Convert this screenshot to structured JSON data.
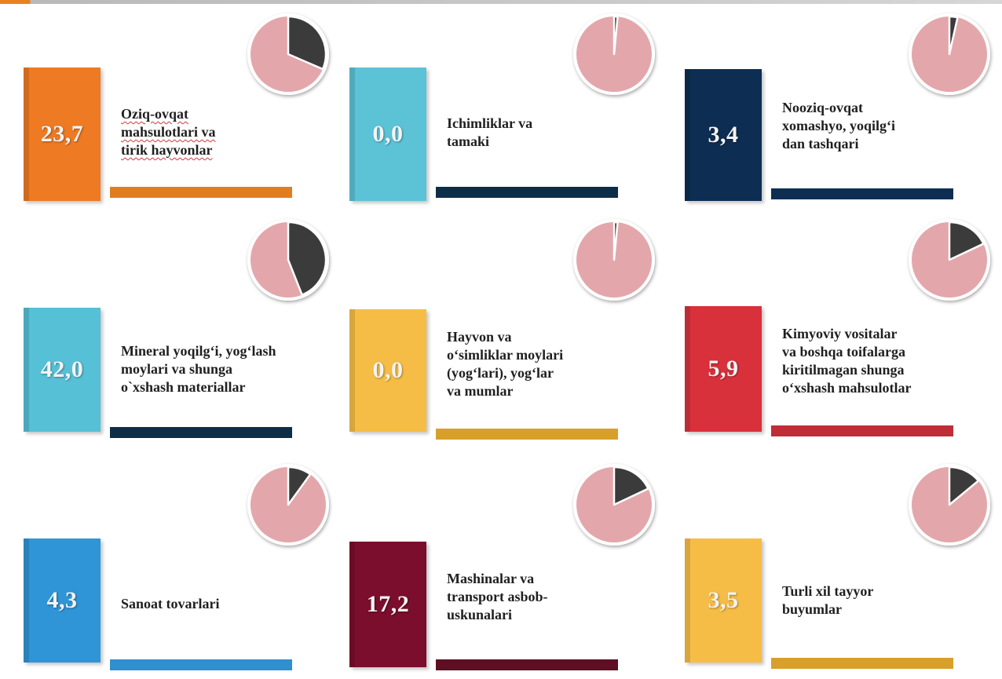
{
  "colors": {
    "pie_base": "#e3a7ab",
    "pie_slice": "#3b3b3b"
  },
  "chart_data": {
    "type": "pie",
    "unit": "%",
    "items": [
      {
        "value": 23.7,
        "display": "23,7",
        "label": "Oziq-ovqat\nmahsulotlari va\ntirik hayvonlar",
        "box_color": "#ee7a23",
        "bar_color": "#e27d1f"
      },
      {
        "value": 0.0,
        "display": "0,0",
        "label": "Ichimliklar va\ntamaki",
        "box_color": "#5cc2d6",
        "bar_color": "#0d2e48"
      },
      {
        "value": 3.4,
        "display": "3,4",
        "label": "Nooziq-ovqat\nxomashyo, yoqilg‘i\ndan tashqari",
        "box_color": "#0d2e52",
        "bar_color": "#0d2e52"
      },
      {
        "value": 42.0,
        "display": "42,0",
        "label": "Mineral yoqilg‘i, yog‘lash\nmoylari va shunga\no`xshash materiallar",
        "box_color": "#56c0d6",
        "bar_color": "#0d2e48"
      },
      {
        "value": 0.0,
        "display": "0,0",
        "label": "Hayvon va\no‘simliklar moylari\n(yog‘lari), yog‘lar\nva mumlar",
        "box_color": "#f5bd45",
        "bar_color": "#d99f2b"
      },
      {
        "value": 5.9,
        "display": "5,9",
        "label": "Kimyoviy vositalar\nva boshqa toifalarga\nkiritilmagan shunga\no‘xshash mahsulotlar",
        "box_color": "#d8313c",
        "bar_color": "#bf2d36"
      },
      {
        "value": 4.3,
        "display": "4,3",
        "label": "Sanoat tovarlari",
        "box_color": "#2f95d6",
        "bar_color": "#2f8fcf"
      },
      {
        "value": 17.2,
        "display": "17,2",
        "label": "Mashinalar va\ntransport asbob-\nuskunalari",
        "box_color": "#7a0e2c",
        "bar_color": "#5e0f24"
      },
      {
        "value": 3.5,
        "display": "3,5",
        "label": "Turli xil tayyor\nbuyumlar",
        "box_color": "#f5bd45",
        "bar_color": "#d99f2b"
      }
    ],
    "slice_shares": [
      31.5,
      1.5,
      3.5,
      44.0,
      1.5,
      18.0,
      10.0,
      18.0,
      14.0
    ]
  }
}
